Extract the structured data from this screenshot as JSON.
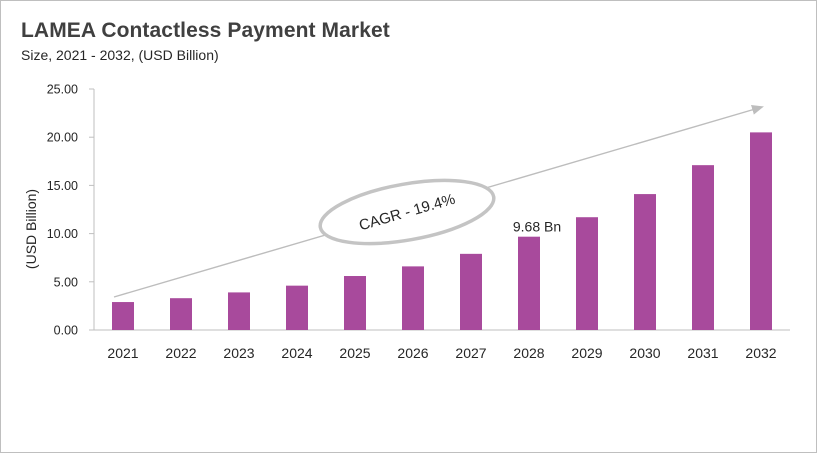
{
  "chart_data": {
    "type": "bar",
    "title": "LAMEA Contactless Payment Market",
    "subtitle": "Size, 2021 - 2032, (USD Billion)",
    "ylabel": "(USD Billion)",
    "xlabel": "",
    "ylim": [
      0,
      25
    ],
    "yticks": [
      "0.00",
      "5.00",
      "10.00",
      "15.00",
      "20.00",
      "25.00"
    ],
    "categories": [
      "2021",
      "2022",
      "2023",
      "2024",
      "2025",
      "2026",
      "2027",
      "2028",
      "2029",
      "2030",
      "2031",
      "2032"
    ],
    "values": [
      2.9,
      3.3,
      3.9,
      4.6,
      5.6,
      6.6,
      7.9,
      9.68,
      11.7,
      14.1,
      17.1,
      20.5
    ],
    "bar_color": "#a84a9c",
    "grid": false,
    "legend": "none",
    "data_label": {
      "category": "2028",
      "text": "9.68 Bn"
    },
    "annotation": {
      "text": "CAGR - 19.4%"
    }
  }
}
